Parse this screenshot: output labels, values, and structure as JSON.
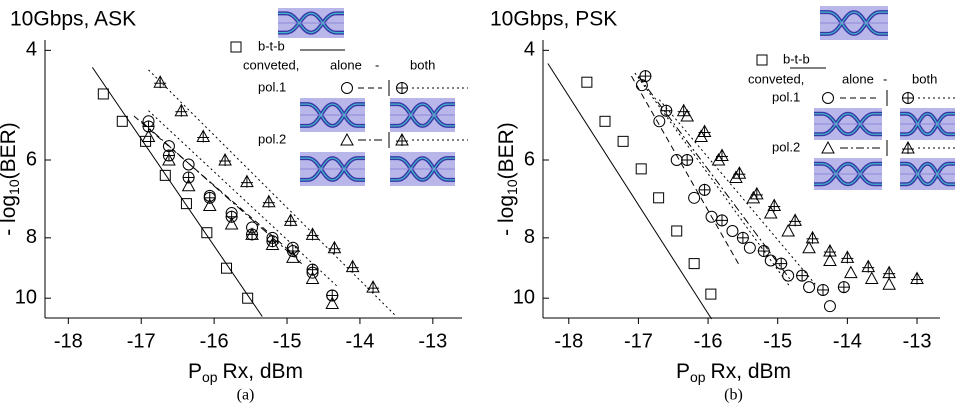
{
  "chart_data": [
    {
      "type": "scatter",
      "title": "10Gbps, ASK",
      "caption": "(a)",
      "x_label": {
        "main": "P",
        "sub": "op",
        "rest": "Rx, dBm"
      },
      "y_label": {
        "main": "- log",
        "sub": "10",
        "rest": "(BER)"
      },
      "xlim": [
        -18.32,
        -12.6
      ],
      "ylim": [
        3.85,
        10.76
      ],
      "yscale": "log",
      "y_inverted": true,
      "xticks": [
        -18,
        -17,
        -16,
        -15,
        -14,
        -13
      ],
      "yticks": [
        4,
        6,
        8,
        10
      ],
      "legend": {
        "header": [
          "conveted,",
          "alone",
          "-",
          "both"
        ],
        "rows": [
          "pol.1",
          "pol.2"
        ]
      },
      "series": [
        {
          "name": "b-t-b",
          "color": "#000000",
          "marker": "square",
          "dash": "solid",
          "x": [
            -17.52,
            -17.26,
            -16.94,
            -16.67,
            -16.38,
            -16.1,
            -15.83,
            -15.54
          ],
          "values": [
            4.7,
            5.2,
            5.6,
            6.35,
            7.05,
            7.85,
            8.95,
            10.0
          ],
          "fit_x": [
            -17.67,
            -15.34
          ],
          "fit_y": [
            4.26,
            10.7
          ]
        },
        {
          "color": "#000000",
          "marker": "circle",
          "dash": "dashed",
          "x": [
            -16.9,
            -16.62,
            -16.35,
            -16.06,
            -15.76,
            -15.48,
            -15.2,
            -14.92,
            -14.65,
            -14.38
          ],
          "values": [
            5.2,
            5.7,
            6.1,
            6.85,
            7.3,
            7.7,
            8.0,
            8.3,
            9.1,
            9.9
          ],
          "fit_x": [
            -17.1,
            -14.81
          ],
          "fit_y": [
            5.1,
            8.7
          ]
        },
        {
          "color": "#000000",
          "marker": "circle-plus",
          "dash": "dotted",
          "x": [
            -16.9,
            -16.62,
            -16.35,
            -16.06,
            -15.76,
            -15.48,
            -15.2,
            -14.92,
            -14.65,
            -14.38
          ],
          "values": [
            5.3,
            5.9,
            6.4,
            6.9,
            7.4,
            7.9,
            8.1,
            8.4,
            9.0,
            9.9
          ],
          "fit_x": [
            -16.9,
            -14.3
          ],
          "fit_y": [
            5.0,
            9.6
          ]
        },
        {
          "color": "#000000",
          "marker": "triangle",
          "dash": "dashdot",
          "x": [
            -16.9,
            -16.62,
            -16.35,
            -16.06,
            -15.76,
            -15.48,
            -15.2,
            -14.92,
            -14.65,
            -14.38
          ],
          "values": [
            5.5,
            6.0,
            6.6,
            7.1,
            7.6,
            7.9,
            8.2,
            8.6,
            9.3,
            10.2
          ],
          "fit_x": [
            -17.0,
            -14.8
          ],
          "fit_y": [
            5.2,
            8.8
          ]
        },
        {
          "color": "#000000",
          "marker": "triangle-plus",
          "dash": "dotted",
          "x": [
            -16.74,
            -16.45,
            -16.15,
            -15.85,
            -15.55,
            -15.25,
            -14.95,
            -14.65,
            -14.35,
            -14.1,
            -13.82
          ],
          "values": [
            4.5,
            5.0,
            5.5,
            6.0,
            6.5,
            7.0,
            7.5,
            7.9,
            8.3,
            8.9,
            9.6
          ],
          "fit_x": [
            -16.9,
            -13.5
          ],
          "fit_y": [
            4.3,
            10.7
          ]
        }
      ]
    },
    {
      "type": "scatter",
      "title": "10Gbps, PSK",
      "caption": "(b)",
      "x_label": {
        "main": "P",
        "sub": "op",
        "rest": "Rx, dBm"
      },
      "y_label": {
        "main": "- log",
        "sub": "10",
        "rest": "(BER)"
      },
      "xlim": [
        -18.37,
        -12.67
      ],
      "ylim": [
        3.85,
        10.76
      ],
      "yscale": "log",
      "y_inverted": true,
      "xticks": [
        -18,
        -17,
        -16,
        -15,
        -14,
        -13
      ],
      "yticks": [
        4,
        6,
        8,
        10
      ],
      "legend": {
        "header": [
          "conveted,",
          "alone",
          "-",
          "both"
        ],
        "rows": [
          "pol.1",
          "pol.2"
        ]
      },
      "series": [
        {
          "name": "b-t-b",
          "color": "#000000",
          "marker": "square",
          "dash": "solid",
          "x": [
            -17.74,
            -17.48,
            -17.22,
            -16.96,
            -16.71,
            -16.45,
            -16.2,
            -15.96
          ],
          "values": [
            4.5,
            5.2,
            5.6,
            6.2,
            6.9,
            7.8,
            8.8,
            9.85
          ],
          "fit_x": [
            -18.3,
            -15.95
          ],
          "fit_y": [
            4.2,
            10.8
          ]
        },
        {
          "color": "#000000",
          "marker": "circle",
          "dash": "dashed",
          "x": [
            -16.95,
            -16.7,
            -16.45,
            -16.2,
            -15.95,
            -15.65,
            -15.4,
            -15.1,
            -14.85,
            -14.55,
            -14.25
          ],
          "values": [
            4.55,
            5.2,
            6.0,
            6.9,
            7.4,
            7.8,
            8.3,
            8.7,
            9.2,
            9.6,
            10.3
          ],
          "fit_x": [
            -17.1,
            -15.54
          ],
          "fit_y": [
            4.4,
            8.9
          ]
        },
        {
          "color": "#000000",
          "marker": "circle-plus",
          "dash": "dotted",
          "x": [
            -16.9,
            -16.6,
            -16.3,
            -16.05,
            -15.8,
            -15.5,
            -15.2,
            -14.95,
            -14.65,
            -14.35,
            -14.05
          ],
          "values": [
            4.4,
            5.0,
            6.0,
            6.7,
            7.5,
            8.0,
            8.4,
            8.8,
            9.2,
            9.7,
            9.6
          ],
          "fit_x": [
            -17.05,
            -14.82
          ],
          "fit_y": [
            4.35,
            9.6
          ]
        },
        {
          "color": "#000000",
          "marker": "triangle",
          "dash": "dashdot",
          "x": [
            -16.3,
            -16.1,
            -15.85,
            -15.6,
            -15.35,
            -15.1,
            -14.85,
            -14.55,
            -14.25,
            -13.95,
            -13.65,
            -13.4
          ],
          "values": [
            5.1,
            5.5,
            6.0,
            6.4,
            6.9,
            7.3,
            7.8,
            8.3,
            8.7,
            9.1,
            9.3,
            9.5
          ],
          "fit_x": [
            -17.0,
            -14.8
          ],
          "fit_y": [
            4.4,
            9.4
          ]
        },
        {
          "color": "#000000",
          "marker": "triangle-plus",
          "dash": "dotted",
          "x": [
            -16.35,
            -16.05,
            -15.8,
            -15.55,
            -15.3,
            -15.05,
            -14.75,
            -14.5,
            -14.25,
            -14.0,
            -13.7,
            -13.4,
            -13.0
          ],
          "values": [
            5.0,
            5.4,
            5.9,
            6.3,
            6.8,
            7.1,
            7.5,
            8.0,
            8.4,
            8.6,
            8.9,
            9.1,
            9.3
          ],
          "fit_x": [
            -16.7,
            -14.46
          ],
          "fit_y": [
            4.8,
            9.5
          ]
        }
      ]
    }
  ]
}
